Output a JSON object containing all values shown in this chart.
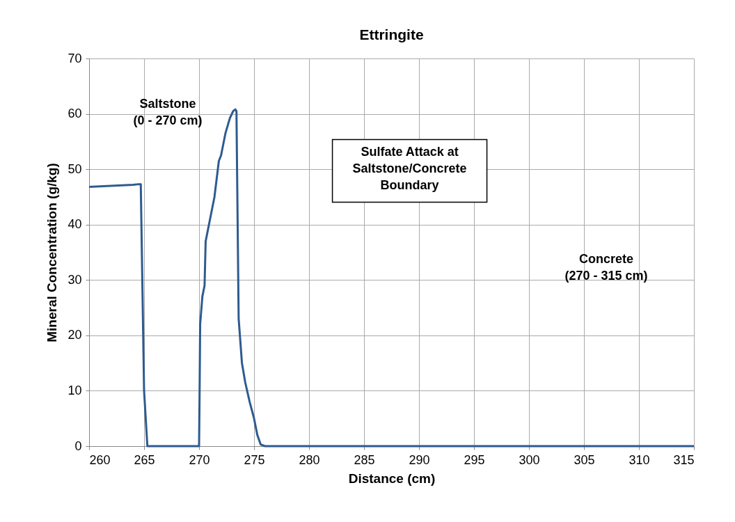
{
  "chart_data": {
    "type": "line",
    "title": "Ettringite",
    "xlabel": "Distance (cm)",
    "ylabel": "Mineral Concentration (g/kg)",
    "x": [
      260,
      262,
      264,
      264.5,
      264.7,
      265.0,
      265.3,
      270,
      270.05,
      270.1,
      270.3,
      270.5,
      270.6,
      271,
      271.4,
      271.8,
      272,
      272.4,
      272.8,
      273.1,
      273.3,
      273.4,
      273.6,
      273.9,
      274.2,
      274.6,
      275,
      275.3,
      275.6,
      276,
      315
    ],
    "series": [
      {
        "color": "#2e5b8f",
        "values": [
          46.8,
          47.0,
          47.2,
          47.3,
          47.3,
          10,
          0,
          0,
          10,
          22,
          27,
          29,
          37,
          41,
          45,
          51.5,
          52.5,
          56.5,
          59.2,
          60.5,
          60.8,
          60.5,
          23,
          15,
          11.5,
          8,
          5,
          2,
          0.3,
          0,
          0
        ]
      }
    ],
    "xlim": [
      260,
      315
    ],
    "xticks": [
      260,
      265,
      270,
      275,
      280,
      285,
      290,
      295,
      300,
      305,
      310,
      315
    ],
    "ylim": [
      0,
      70
    ],
    "yticks": [
      0,
      10,
      20,
      30,
      40,
      50,
      60,
      70
    ],
    "grid": true,
    "marker": "none",
    "line_style": "solid",
    "annotations": [
      "Saltstone\n(0 - 270 cm)",
      "Sulfate Attack at\nSaltstone/Concrete\nBoundary",
      "Concrete\n(270 - 315 cm)"
    ]
  }
}
